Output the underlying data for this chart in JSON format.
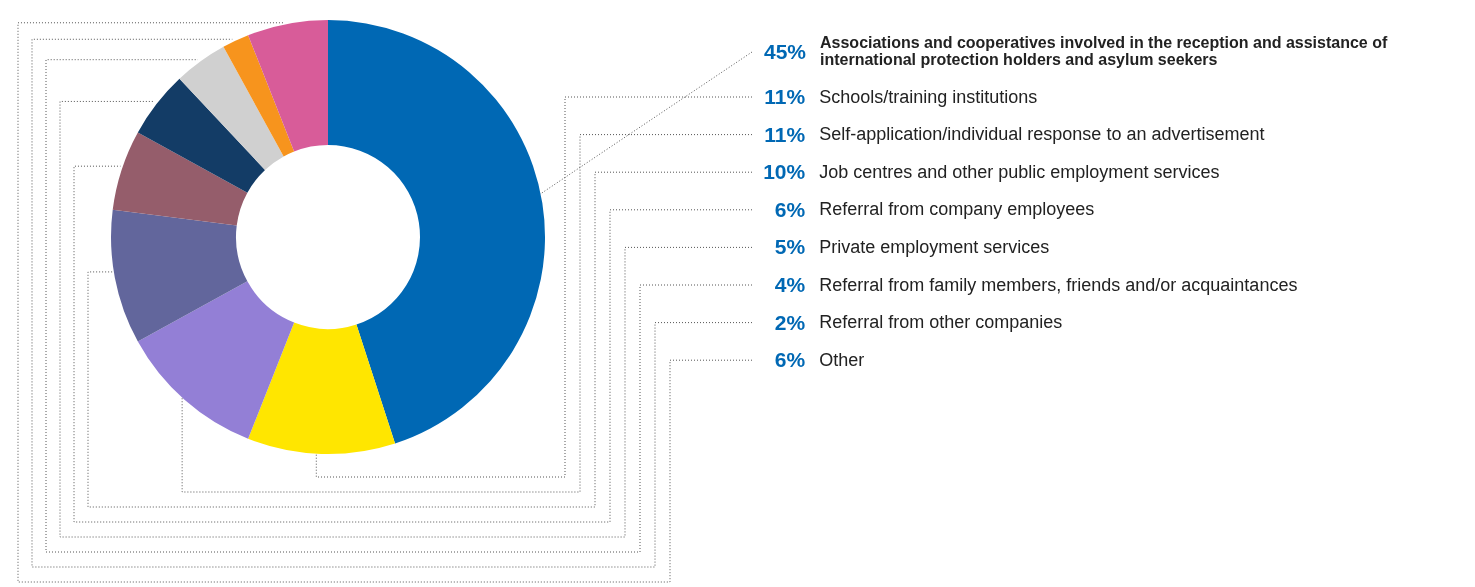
{
  "chart_data": {
    "type": "donut",
    "categories": [
      "Associations and cooperatives involved in the reception and assistance of international protection holders and asylum seekers",
      "Schools/training institutions",
      "Self-application/individual response to an advertisement",
      "Job centres and other public employment services",
      "Referral from company employees",
      "Private employment services",
      "Referral from family members, friends and/or acquaintances",
      "Referral from other companies",
      "Other"
    ],
    "values": [
      45,
      11,
      11,
      10,
      6,
      5,
      4,
      2,
      6
    ],
    "value_labels": [
      "45%",
      "11%",
      "11%",
      "10%",
      "6%",
      "5%",
      "4%",
      "2%",
      "6%"
    ],
    "colors": [
      "#0068b4",
      "#ffe600",
      "#937fd6",
      "#62669c",
      "#955d6b",
      "#133c66",
      "#d0d0d0",
      "#f7941d",
      "#d85c99"
    ]
  }
}
